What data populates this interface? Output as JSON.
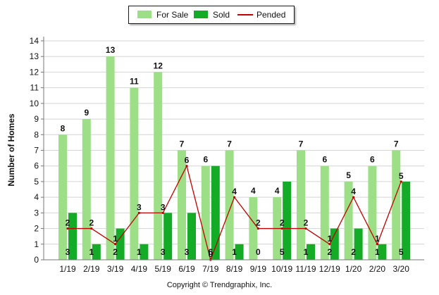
{
  "chart_data": {
    "type": "bar",
    "categories": [
      "1/19",
      "2/19",
      "3/19",
      "4/19",
      "5/19",
      "6/19",
      "7/19",
      "8/19",
      "9/19",
      "10/19",
      "11/19",
      "12/19",
      "1/20",
      "2/20",
      "3/20"
    ],
    "series": [
      {
        "name": "For Sale",
        "kind": "bar",
        "color": "#9cdf86",
        "values": [
          8,
          9,
          13,
          11,
          12,
          7,
          6,
          7,
          4,
          4,
          7,
          6,
          5,
          6,
          7
        ]
      },
      {
        "name": "Sold",
        "kind": "bar",
        "color": "#14ac27",
        "values": [
          3,
          1,
          2,
          1,
          3,
          3,
          6,
          1,
          0,
          5,
          1,
          2,
          2,
          1,
          5
        ]
      },
      {
        "name": "Pended",
        "kind": "line",
        "color": "#c00000",
        "values": [
          2,
          2,
          1,
          3,
          3,
          6,
          0,
          4,
          2,
          2,
          2,
          1,
          4,
          1,
          5
        ]
      }
    ],
    "ylabel": "Number of Homes",
    "xlabel": "",
    "ylim": [
      0,
      14
    ],
    "yticks": [
      0,
      1,
      2,
      3,
      4,
      5,
      6,
      7,
      8,
      9,
      10,
      11,
      12,
      13,
      14
    ],
    "grid": true,
    "legend_position": "top-center"
  },
  "footer": {
    "copyright": "Copyright © Trendgraphix, Inc."
  }
}
